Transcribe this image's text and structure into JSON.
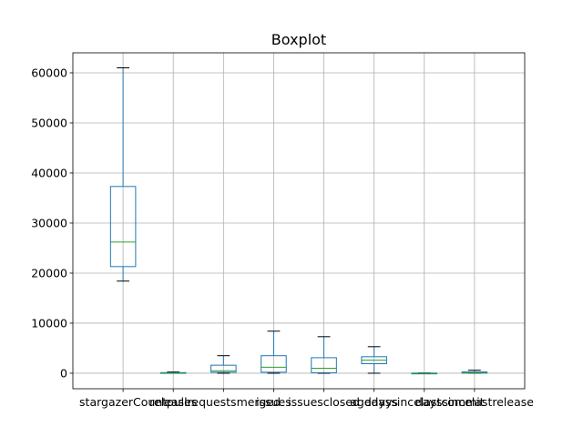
{
  "chart_data": {
    "type": "boxplot",
    "title": "Boxplot",
    "xlabel": "",
    "ylabel": "",
    "ylim": [
      -3100,
      64000
    ],
    "yticks": [
      0,
      10000,
      20000,
      30000,
      40000,
      50000,
      60000
    ],
    "ytick_labels": [
      "0",
      "10000",
      "20000",
      "30000",
      "40000",
      "50000",
      "60000"
    ],
    "grid": true,
    "colors": {
      "box": "#1f77b4",
      "median": "#2ca02c",
      "whisker_cap": "#000000",
      "grid": "#b0b0b0"
    },
    "categories": [
      "stargazerCount",
      "releases",
      "pullrequestsmerged",
      "issues",
      "issuesclosed",
      "agedays",
      "dayssincelastcommit",
      "dayssincelastrelease"
    ],
    "boxes": [
      {
        "name": "stargazerCount",
        "whislo": 18400,
        "q1": 21300,
        "med": 26200,
        "q3": 37300,
        "whishi": 61000
      },
      {
        "name": "releases",
        "whislo": 0,
        "q1": 10,
        "med": 40,
        "q3": 120,
        "whishi": 250
      },
      {
        "name": "pullrequestsmerged",
        "whislo": 0,
        "q1": 200,
        "med": 500,
        "q3": 1600,
        "whishi": 3500
      },
      {
        "name": "issues",
        "whislo": 0,
        "q1": 200,
        "med": 1200,
        "q3": 3500,
        "whishi": 8400
      },
      {
        "name": "issuesclosed",
        "whislo": 0,
        "q1": 100,
        "med": 1000,
        "q3": 3100,
        "whishi": 7300
      },
      {
        "name": "agedays",
        "whislo": 0,
        "q1": 1900,
        "med": 2600,
        "q3": 3300,
        "whishi": 5300
      },
      {
        "name": "dayssincelastcommit",
        "whislo": 0,
        "q1": 0,
        "med": 5,
        "q3": 20,
        "whishi": 60
      },
      {
        "name": "dayssincelastrelease",
        "whislo": 0,
        "q1": 20,
        "med": 80,
        "q3": 250,
        "whishi": 600
      }
    ]
  }
}
